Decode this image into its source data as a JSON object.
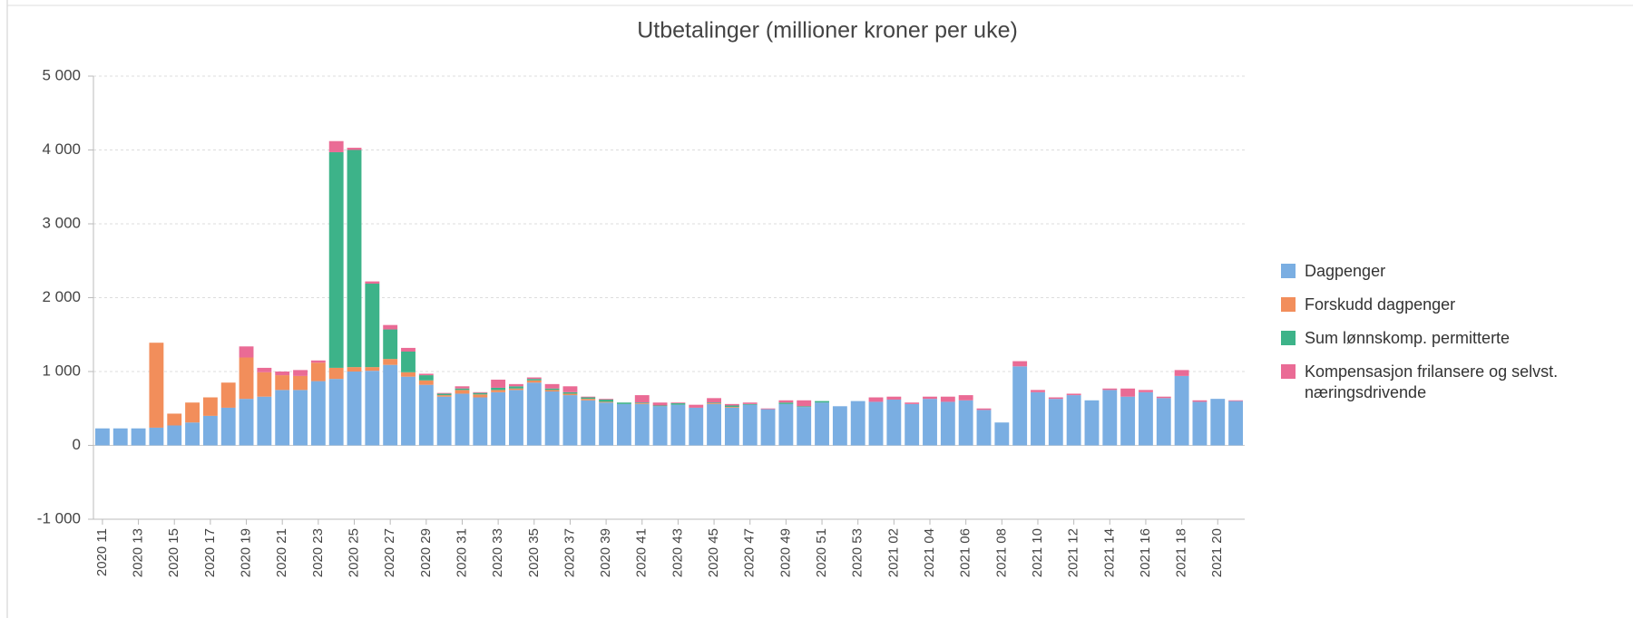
{
  "chart_data": {
    "type": "bar",
    "stacked": true,
    "title": "Utbetalinger (millioner kroner per uke)",
    "categories": [
      "2020 11",
      null,
      "2020 13",
      null,
      "2020 15",
      null,
      "2020 17",
      null,
      "2020 19",
      null,
      "2020 21",
      null,
      "2020 23",
      null,
      "2020 25",
      null,
      "2020 27",
      null,
      "2020 29",
      null,
      "2020 31",
      null,
      "2020 33",
      null,
      "2020 35",
      null,
      "2020 37",
      null,
      "2020 39",
      null,
      "2020 41",
      null,
      "2020 43",
      null,
      "2020 45",
      null,
      "2020 47",
      null,
      "2020 49",
      null,
      "2020 51",
      null,
      "2020 53",
      null,
      "2021 02",
      null,
      "2021 04",
      null,
      "2021 06",
      null,
      "2021 08",
      null,
      "2021 10",
      null,
      "2021 12",
      null,
      "2021 14",
      null,
      "2021 16",
      null,
      "2021 18",
      null,
      "2021 20",
      null
    ],
    "series": [
      {
        "name": "Dagpenger",
        "color": "#7aaee2",
        "values": [
          230,
          230,
          230,
          240,
          270,
          310,
          400,
          510,
          630,
          660,
          750,
          750,
          870,
          900,
          1000,
          1010,
          1090,
          930,
          820,
          660,
          700,
          650,
          720,
          750,
          850,
          730,
          680,
          610,
          580,
          560,
          560,
          530,
          550,
          510,
          560,
          510,
          550,
          490,
          560,
          520,
          580,
          530,
          600,
          590,
          620,
          560,
          630,
          590,
          610,
          480,
          310,
          1070,
          720,
          630,
          680,
          610,
          750,
          660,
          720,
          640,
          940,
          590,
          630,
          600
        ]
      },
      {
        "name": "Forskudd dagpenger",
        "color": "#f28e5b",
        "values": [
          0,
          0,
          0,
          1150,
          160,
          270,
          250,
          340,
          560,
          330,
          200,
          190,
          250,
          150,
          60,
          50,
          80,
          60,
          60,
          20,
          50,
          40,
          30,
          20,
          30,
          20,
          20,
          20,
          10,
          0,
          10,
          0,
          0,
          0,
          10,
          10,
          0,
          0,
          0,
          0,
          0,
          0,
          0,
          0,
          0,
          0,
          0,
          0,
          0,
          0,
          0,
          0,
          0,
          0,
          0,
          0,
          0,
          0,
          0,
          0,
          0,
          0,
          0,
          0
        ]
      },
      {
        "name": "Sum lønnskomp. permitterte",
        "color": "#3db389",
        "values": [
          0,
          0,
          0,
          0,
          0,
          0,
          0,
          0,
          0,
          0,
          0,
          0,
          0,
          2920,
          2940,
          1130,
          400,
          280,
          70,
          20,
          20,
          20,
          30,
          30,
          20,
          20,
          20,
          20,
          30,
          20,
          10,
          10,
          20,
          0,
          10,
          20,
          10,
          0,
          20,
          10,
          20,
          0,
          0,
          0,
          0,
          0,
          0,
          0,
          0,
          0,
          0,
          0,
          0,
          0,
          0,
          0,
          0,
          0,
          0,
          0,
          0,
          0,
          0,
          0
        ]
      },
      {
        "name": "Kompensasjon frilansere og selvst. næringsdrivende",
        "color": "#ea6b95",
        "values": [
          0,
          0,
          0,
          0,
          0,
          0,
          0,
          0,
          150,
          60,
          50,
          80,
          30,
          150,
          30,
          30,
          60,
          50,
          20,
          10,
          30,
          10,
          110,
          30,
          20,
          60,
          80,
          10,
          10,
          0,
          100,
          40,
          10,
          40,
          60,
          20,
          20,
          10,
          30,
          80,
          0,
          0,
          0,
          60,
          40,
          20,
          30,
          70,
          70,
          20,
          0,
          70,
          30,
          20,
          20,
          0,
          20,
          110,
          30,
          20,
          80,
          20,
          0,
          10
        ]
      }
    ],
    "ylim": [
      -1000,
      5000
    ],
    "yticks": [
      {
        "value": -1000,
        "label": "-1 000"
      },
      0,
      {
        "value": 1000,
        "label": "1 000"
      },
      {
        "value": 2000,
        "label": "2 000"
      },
      {
        "value": 3000,
        "label": "3 000"
      },
      {
        "value": 4000,
        "label": "4 000"
      },
      {
        "value": 5000,
        "label": "5 000"
      }
    ],
    "grid": true,
    "legend": "right"
  }
}
